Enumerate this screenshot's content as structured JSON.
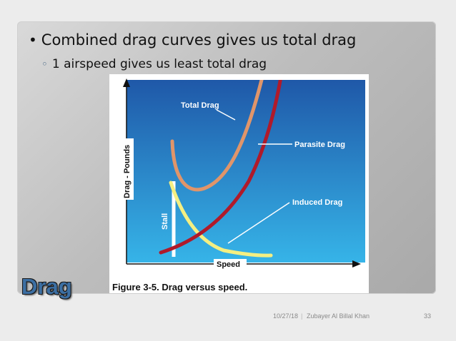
{
  "slide": {
    "bullet_main": "Combined drag curves gives us total drag",
    "bullet_sub": "1 airspeed gives us least total drag",
    "title": "Drag"
  },
  "figure": {
    "labels": {
      "total": "Total Drag",
      "parasite": "Parasite Drag",
      "induced": "Induced Drag",
      "stall": "Stall",
      "yaxis": "Drag - Pounds",
      "xaxis": "Speed"
    },
    "caption": "Figure 3-5. Drag versus speed.",
    "colors": {
      "background_top": "#1f58a8",
      "background_bottom": "#36b4e8",
      "total": "#e0956a",
      "parasite": "#b01a2a",
      "induced": "#f4ef82",
      "stall": "#ffffff"
    }
  },
  "footer": {
    "date": "10/27/18",
    "separator": "|",
    "author": "Zubayer Al Billal Khan",
    "page": "33"
  }
}
